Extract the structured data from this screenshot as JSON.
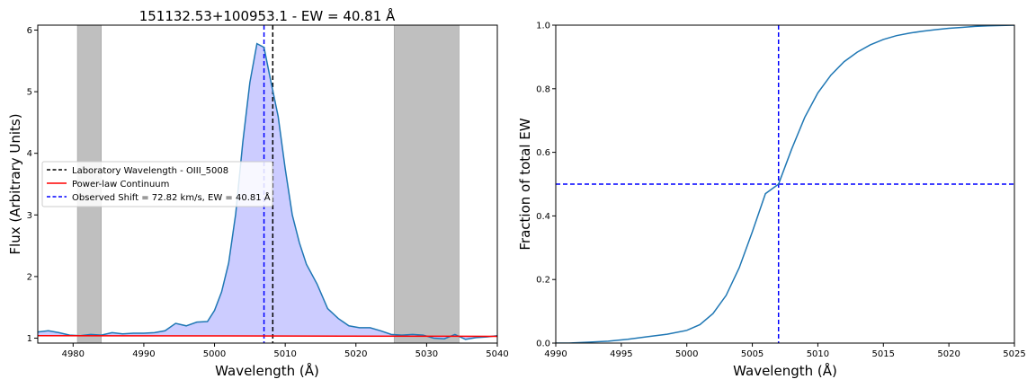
{
  "chart_data": [
    {
      "type": "line",
      "title": "151132.53+100953.1 - EW = 40.81 Å",
      "xlabel": "Wavelength (Å)",
      "ylabel": "Flux (Arbitrary Units)",
      "xlim": [
        4975,
        5040
      ],
      "ylim": [
        0.92,
        6.08
      ],
      "xticks": [
        4980,
        4990,
        5000,
        5010,
        5020,
        5030,
        5040
      ],
      "yticks": [
        1,
        2,
        3,
        4,
        5,
        6
      ],
      "grid": false,
      "legend_position": "center-left",
      "shaded_regions": [
        [
          4980.6,
          4984.0
        ],
        [
          5025.4,
          5034.6
        ]
      ],
      "shaded_color": "#bfbfbf",
      "fill_color": "#ccccff",
      "series": [
        {
          "name": "",
          "color": "#1f77b4",
          "style": "solid",
          "x": [
            4975,
            4976.5,
            4978,
            4979.5,
            4981,
            4982.5,
            4984,
            4985.5,
            4987,
            4988.5,
            4990,
            4991.5,
            4993,
            4994.5,
            4996,
            4997.5,
            4999,
            5000,
            5001,
            5002,
            5003,
            5004,
            5005,
            5006,
            5007,
            5008,
            5009,
            5010,
            5011,
            5012,
            5013,
            5014.5,
            5016,
            5017.5,
            5019,
            5020.5,
            5022,
            5023.5,
            5025,
            5026.5,
            5028,
            5029.5,
            5031,
            5032.5,
            5034,
            5035.5,
            5037,
            5038.5,
            5040
          ],
          "y": [
            1.1,
            1.12,
            1.09,
            1.05,
            1.04,
            1.06,
            1.05,
            1.09,
            1.07,
            1.08,
            1.08,
            1.09,
            1.12,
            1.24,
            1.2,
            1.26,
            1.27,
            1.45,
            1.75,
            2.22,
            3.02,
            4.18,
            5.15,
            5.78,
            5.72,
            5.15,
            4.6,
            3.75,
            3.0,
            2.55,
            2.2,
            1.88,
            1.48,
            1.32,
            1.2,
            1.17,
            1.17,
            1.12,
            1.06,
            1.05,
            1.06,
            1.05,
            1.0,
            0.99,
            1.06,
            0.98,
            1.01,
            1.02,
            1.04
          ]
        },
        {
          "name": "Power-law Continuum",
          "color": "#ff0000",
          "style": "solid",
          "x": [
            4975,
            5040
          ],
          "y": [
            1.04,
            1.03
          ]
        }
      ],
      "vlines": [
        {
          "name": "Laboratory Wavelength - OIII_5008",
          "x": 5008.24,
          "color": "#000000",
          "style": "dashed"
        },
        {
          "name": "Observed Shift = 72.82 km/s, EW = 40.81 Å",
          "x": 5007.0,
          "color": "#0000ff",
          "style": "dashed"
        }
      ]
    },
    {
      "type": "line",
      "title": "",
      "xlabel": "Wavelength (Å)",
      "ylabel": "Fraction of total EW",
      "xlim": [
        4990,
        5025
      ],
      "ylim": [
        0.0,
        1.0
      ],
      "xticks": [
        4990,
        4995,
        5000,
        5005,
        5010,
        5015,
        5020,
        5025
      ],
      "yticks": [
        0.0,
        0.2,
        0.4,
        0.6,
        0.8,
        1.0
      ],
      "grid": false,
      "series": [
        {
          "name": "",
          "color": "#1f77b4",
          "style": "solid",
          "x": [
            4990,
            4991,
            4992.5,
            4994,
            4995.5,
            4997,
            4998.5,
            5000,
            5001,
            5002,
            5003,
            5004,
            5005,
            5006,
            5007,
            5008,
            5009,
            5010,
            5011,
            5012,
            5013,
            5014,
            5015,
            5016,
            5017,
            5018,
            5019,
            5020,
            5021,
            5022,
            5023,
            5024,
            5025
          ],
          "y": [
            0.0,
            0.0,
            0.003,
            0.006,
            0.012,
            0.02,
            0.028,
            0.04,
            0.058,
            0.093,
            0.15,
            0.237,
            0.35,
            0.47,
            0.5,
            0.61,
            0.71,
            0.787,
            0.843,
            0.885,
            0.915,
            0.938,
            0.955,
            0.967,
            0.975,
            0.981,
            0.986,
            0.99,
            0.993,
            0.996,
            0.998,
            0.999,
            1.0
          ]
        }
      ],
      "vlines": [
        {
          "x": 5007.0,
          "color": "#0000ff",
          "style": "dashed"
        }
      ],
      "hlines": [
        {
          "y": 0.5,
          "color": "#0000ff",
          "style": "dashed"
        }
      ]
    }
  ]
}
